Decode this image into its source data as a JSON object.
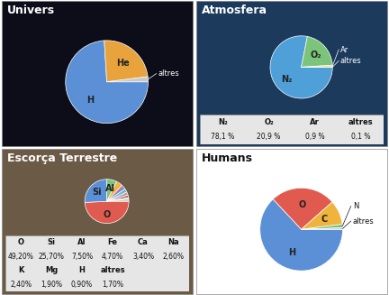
{
  "chart_data": [
    {
      "type": "pie",
      "title": "Univers",
      "categories": [
        "H",
        "He",
        "altres"
      ],
      "values": [
        74,
        24,
        2
      ],
      "colors": [
        "#5b8fd6",
        "#e8a33d",
        "#c9c9c9"
      ]
    },
    {
      "type": "pie",
      "title": "Atmosfera",
      "categories": [
        "N₂",
        "O₂",
        "Ar",
        "altres"
      ],
      "values": [
        78.1,
        20.9,
        0.9,
        0.1
      ],
      "value_labels": [
        "78,1 %",
        "20,9 %",
        "0,9 %",
        "0,1 %"
      ],
      "colors": [
        "#4f9fd8",
        "#7cc47c",
        "#e8d35a",
        "#c9c9c9"
      ]
    },
    {
      "type": "pie",
      "title": "Escorça Terrestre",
      "categories": [
        "O",
        "Si",
        "Al",
        "Fe",
        "Ca",
        "Na",
        "K",
        "Mg",
        "H",
        "altres"
      ],
      "values": [
        49.2,
        25.7,
        7.5,
        4.7,
        3.4,
        2.6,
        2.4,
        1.9,
        0.9,
        1.7
      ],
      "value_labels": [
        "49,20%",
        "25,70%",
        "7,50%",
        "4,70%",
        "3,40%",
        "2,60%",
        "2,40%",
        "1,90%",
        "0,90%",
        "1,70%"
      ],
      "colors": [
        "#e05a4f",
        "#5b8fd6",
        "#7cc47c",
        "#f0b43c",
        "#a57cc4",
        "#4fc4c4",
        "#d98cb3",
        "#9c7a54",
        "#8fb0e0",
        "#c9c9c9"
      ]
    },
    {
      "type": "pie",
      "title": "Humans",
      "categories": [
        "H",
        "O",
        "C",
        "N",
        "altres"
      ],
      "values": [
        63,
        25.5,
        9.5,
        1.4,
        0.6
      ],
      "colors": [
        "#5b8fd6",
        "#e05a4f",
        "#f0b43c",
        "#7cc47c",
        "#c9c9c9"
      ]
    }
  ]
}
